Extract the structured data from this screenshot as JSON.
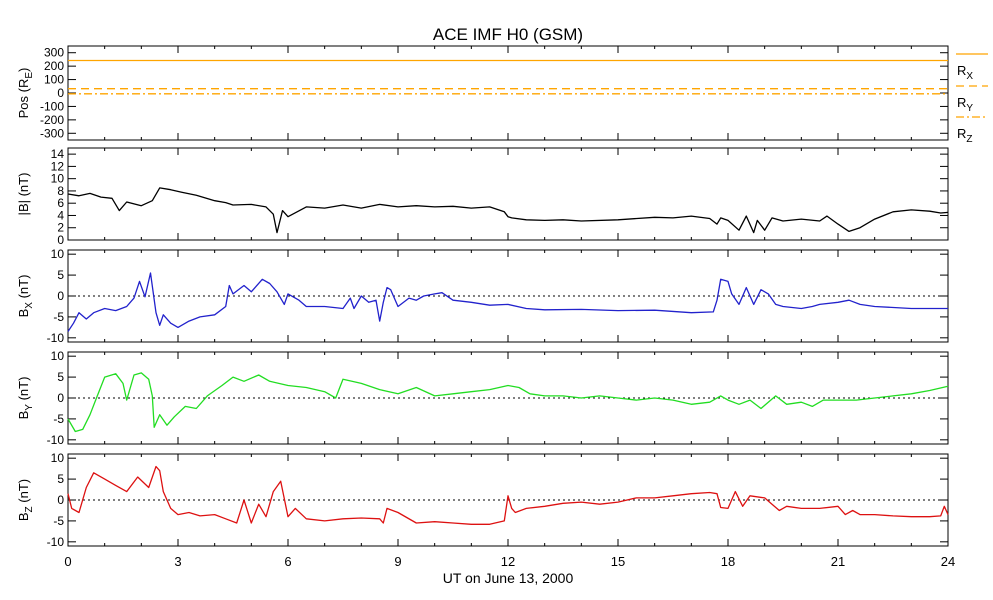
{
  "title": "ACE IMF H0 (GSM)",
  "xlabel": "UT on June 13, 2000",
  "xticks": [
    0,
    3,
    6,
    9,
    12,
    15,
    18,
    21,
    24
  ],
  "colors": {
    "pos": "#FFA500",
    "bmag": "#000000",
    "bx": "#2222CC",
    "by": "#22DD22",
    "bz": "#DD1111",
    "zero_line": "#000000"
  },
  "chart_data": [
    {
      "type": "line",
      "id": "pos",
      "ylabel_main": "Pos (R",
      "ylabel_sub": "E",
      "ylabel_end": ")",
      "ylim": [
        -350,
        350
      ],
      "yticks": [
        300,
        200,
        100,
        0,
        -100,
        -200,
        -300
      ],
      "series": [
        {
          "name": "R",
          "sub": "X",
          "style": "solid",
          "x": [
            0,
            24
          ],
          "y": [
            242,
            242
          ]
        },
        {
          "name": "R",
          "sub": "Y",
          "style": "dash",
          "x": [
            0,
            24
          ],
          "y": [
            32,
            32
          ]
        },
        {
          "name": "R",
          "sub": "Z",
          "style": "dashdot",
          "x": [
            0,
            24
          ],
          "y": [
            -6,
            -6
          ]
        }
      ]
    },
    {
      "type": "line",
      "id": "bmag",
      "ylabel_main": "|B| (nT)",
      "ylabel_sub": "",
      "ylabel_end": "",
      "ylim": [
        0,
        15
      ],
      "yticks": [
        14,
        12,
        10,
        8,
        6,
        4,
        2,
        0
      ],
      "series": [
        {
          "x": [
            0,
            0.3,
            0.6,
            0.9,
            1.2,
            1.4,
            1.6,
            2.0,
            2.3,
            2.5,
            2.8,
            3.1,
            3.5,
            4.0,
            4.3,
            4.5,
            5.0,
            5.4,
            5.6,
            5.7,
            5.85,
            6.0,
            6.5,
            7.0,
            7.5,
            8.0,
            8.5,
            9.0,
            9.5,
            10.0,
            10.5,
            11.0,
            11.5,
            11.9,
            12.0,
            12.1,
            12.5,
            13.0,
            13.5,
            14.0,
            15.0,
            16.0,
            16.5,
            17.0,
            17.5,
            17.7,
            17.8,
            18.0,
            18.3,
            18.5,
            18.7,
            18.8,
            19.0,
            19.2,
            19.5,
            20.0,
            20.5,
            20.7,
            21.0,
            21.3,
            21.6,
            22.0,
            22.5,
            23.0,
            23.5,
            23.8,
            24.0
          ],
          "y": [
            7.5,
            7.2,
            7.6,
            7.0,
            6.8,
            4.8,
            6.2,
            5.6,
            6.4,
            8.5,
            8.2,
            7.8,
            7.3,
            6.4,
            6.1,
            5.7,
            5.8,
            5.4,
            4.2,
            1.2,
            4.8,
            3.8,
            5.4,
            5.2,
            5.7,
            5.2,
            5.8,
            5.4,
            5.6,
            5.4,
            5.5,
            5.2,
            5.4,
            4.6,
            3.8,
            3.6,
            3.3,
            3.2,
            3.3,
            3.1,
            3.3,
            3.7,
            3.6,
            3.9,
            3.5,
            2.6,
            3.6,
            3.2,
            1.6,
            3.9,
            1.2,
            3.2,
            1.6,
            3.6,
            3.1,
            3.4,
            3.1,
            3.9,
            2.6,
            1.4,
            2.0,
            3.4,
            4.6,
            4.9,
            4.7,
            4.4,
            4.5
          ]
        }
      ]
    },
    {
      "type": "line",
      "id": "bx",
      "ylabel_main": "B",
      "ylabel_sub": "X",
      "ylabel_end": " (nT)",
      "ylim": [
        -11,
        11
      ],
      "yticks": [
        10,
        5,
        0,
        -5,
        -10
      ],
      "series": [
        {
          "x": [
            0,
            0.15,
            0.3,
            0.5,
            0.7,
            1.0,
            1.3,
            1.6,
            1.8,
            1.95,
            2.1,
            2.25,
            2.4,
            2.5,
            2.6,
            2.8,
            3.0,
            3.3,
            3.6,
            4.0,
            4.3,
            4.4,
            4.5,
            4.8,
            5.0,
            5.3,
            5.5,
            5.7,
            5.9,
            6.0,
            6.3,
            6.5,
            7.0,
            7.5,
            7.7,
            7.8,
            8.0,
            8.2,
            8.4,
            8.5,
            8.6,
            8.7,
            8.8,
            9.0,
            9.3,
            9.5,
            9.7,
            10.0,
            10.2,
            10.5,
            11.0,
            11.5,
            12.0,
            12.5,
            13.0,
            14.0,
            15.0,
            16.0,
            17.0,
            17.6,
            17.7,
            17.8,
            18.0,
            18.1,
            18.3,
            18.5,
            18.7,
            18.9,
            19.1,
            19.3,
            19.5,
            20.0,
            20.3,
            20.5,
            21.0,
            21.3,
            21.6,
            22.0,
            23.0,
            24.0
          ],
          "y": [
            -8.5,
            -6.5,
            -4.0,
            -5.5,
            -4.0,
            -3.0,
            -3.5,
            -2.5,
            -0.5,
            3.5,
            -0.2,
            5.5,
            -4.0,
            -7.0,
            -4.5,
            -6.5,
            -7.5,
            -6.0,
            -5.0,
            -4.5,
            -2.5,
            2.5,
            0.5,
            2.5,
            1.0,
            4.0,
            3.0,
            1.0,
            -2.0,
            0.5,
            -1.0,
            -2.5,
            -2.5,
            -3.0,
            -0.5,
            -3.0,
            0.0,
            -1.5,
            -1.0,
            -6.0,
            -1.5,
            2.0,
            1.5,
            -2.5,
            -0.5,
            -1.0,
            0.0,
            0.5,
            0.8,
            -1.0,
            -1.5,
            -2.2,
            -2.0,
            -3.0,
            -3.3,
            -3.2,
            -3.5,
            -3.4,
            -4.0,
            -3.8,
            -1.0,
            4.0,
            3.5,
            0.5,
            -2.0,
            2.0,
            -2.0,
            1.5,
            0.5,
            -2.0,
            -2.5,
            -3.0,
            -2.5,
            -2.0,
            -1.5,
            -1.0,
            -2.0,
            -2.5,
            -3.0,
            -3.0
          ]
        }
      ]
    },
    {
      "type": "line",
      "id": "by",
      "ylabel_main": "B",
      "ylabel_sub": "Y",
      "ylabel_end": " (nT)",
      "ylim": [
        -11,
        11
      ],
      "yticks": [
        10,
        5,
        0,
        -5,
        -10
      ],
      "series": [
        {
          "x": [
            0,
            0.2,
            0.4,
            0.6,
            0.8,
            1.0,
            1.3,
            1.5,
            1.6,
            1.8,
            2.0,
            2.2,
            2.3,
            2.35,
            2.5,
            2.7,
            2.9,
            3.2,
            3.5,
            3.8,
            4.2,
            4.5,
            4.8,
            5.2,
            5.5,
            6.0,
            6.5,
            7.0,
            7.3,
            7.5,
            8.0,
            8.5,
            9.0,
            9.5,
            10.0,
            10.5,
            11.0,
            11.5,
            12.0,
            12.3,
            12.6,
            13.0,
            13.5,
            14.0,
            14.5,
            15.0,
            15.5,
            16.0,
            16.5,
            17.0,
            17.5,
            17.8,
            18.0,
            18.3,
            18.6,
            18.9,
            19.3,
            19.6,
            20.0,
            20.3,
            20.6,
            21.0,
            21.5,
            22.0,
            22.5,
            23.0,
            23.5,
            24.0
          ],
          "y": [
            -5.0,
            -8.0,
            -7.5,
            -4.0,
            0.5,
            5.0,
            5.8,
            3.5,
            -0.5,
            5.5,
            6.0,
            4.5,
            0.5,
            -7.0,
            -4.0,
            -6.5,
            -4.5,
            -2.0,
            -2.5,
            0.5,
            3.0,
            5.0,
            4.0,
            5.5,
            4.0,
            3.0,
            2.5,
            1.5,
            0.0,
            4.5,
            3.5,
            2.0,
            1.0,
            2.5,
            0.5,
            1.0,
            1.5,
            2.0,
            3.0,
            2.5,
            1.0,
            0.5,
            0.5,
            0.0,
            0.5,
            0.0,
            -0.5,
            0.0,
            -0.5,
            -1.5,
            -1.0,
            0.5,
            -0.5,
            -1.5,
            -0.5,
            -2.5,
            0.5,
            -1.5,
            -1.0,
            -2.0,
            -0.5,
            -0.5,
            -0.5,
            0.0,
            0.5,
            1.0,
            1.8,
            2.8
          ]
        }
      ]
    },
    {
      "type": "line",
      "id": "bz",
      "ylabel_main": "B",
      "ylabel_sub": "Z",
      "ylabel_end": " (nT)",
      "ylim": [
        -11,
        11
      ],
      "yticks": [
        10,
        5,
        0,
        -5,
        -10
      ],
      "series": [
        {
          "x": [
            0,
            0.1,
            0.3,
            0.5,
            0.7,
            1.0,
            1.3,
            1.6,
            1.9,
            2.2,
            2.4,
            2.5,
            2.6,
            2.8,
            3.0,
            3.3,
            3.6,
            4.0,
            4.3,
            4.6,
            4.8,
            5.0,
            5.2,
            5.4,
            5.6,
            5.8,
            6.0,
            6.2,
            6.5,
            7.0,
            7.5,
            8.0,
            8.5,
            8.6,
            8.7,
            9.0,
            9.5,
            10.0,
            10.5,
            11.0,
            11.5,
            11.9,
            12.0,
            12.1,
            12.2,
            12.5,
            13.0,
            13.5,
            14.0,
            14.5,
            15.0,
            15.5,
            16.0,
            16.5,
            17.0,
            17.5,
            17.7,
            17.8,
            18.0,
            18.2,
            18.4,
            18.6,
            19.0,
            19.2,
            19.4,
            19.6,
            20.0,
            20.5,
            21.0,
            21.2,
            21.4,
            21.6,
            22.0,
            22.5,
            23.0,
            23.5,
            23.8,
            23.9,
            24.0
          ],
          "y": [
            1.5,
            -2.0,
            -3.0,
            3.0,
            6.5,
            5.0,
            3.5,
            2.0,
            5.5,
            3.0,
            8.0,
            7.0,
            2.0,
            -2.0,
            -3.5,
            -3.0,
            -3.8,
            -3.5,
            -4.5,
            -5.5,
            0.0,
            -5.5,
            -1.0,
            -4.0,
            2.0,
            4.5,
            -4.0,
            -2.0,
            -4.5,
            -5.0,
            -4.5,
            -4.3,
            -4.5,
            -5.5,
            -2.0,
            -3.0,
            -5.5,
            -5.2,
            -5.5,
            -5.8,
            -5.8,
            -5.0,
            1.0,
            -2.0,
            -3.0,
            -2.0,
            -1.5,
            -0.8,
            -0.5,
            -1.0,
            -0.5,
            0.5,
            0.5,
            1.0,
            1.5,
            1.8,
            1.5,
            -1.8,
            -2.0,
            2.0,
            -1.5,
            1.0,
            0.5,
            -1.0,
            -2.5,
            -1.5,
            -2.0,
            -2.0,
            -1.5,
            -3.5,
            -2.5,
            -3.5,
            -3.5,
            -3.8,
            -4.0,
            -4.0,
            -3.8,
            -1.5,
            -3.5
          ]
        }
      ]
    }
  ]
}
